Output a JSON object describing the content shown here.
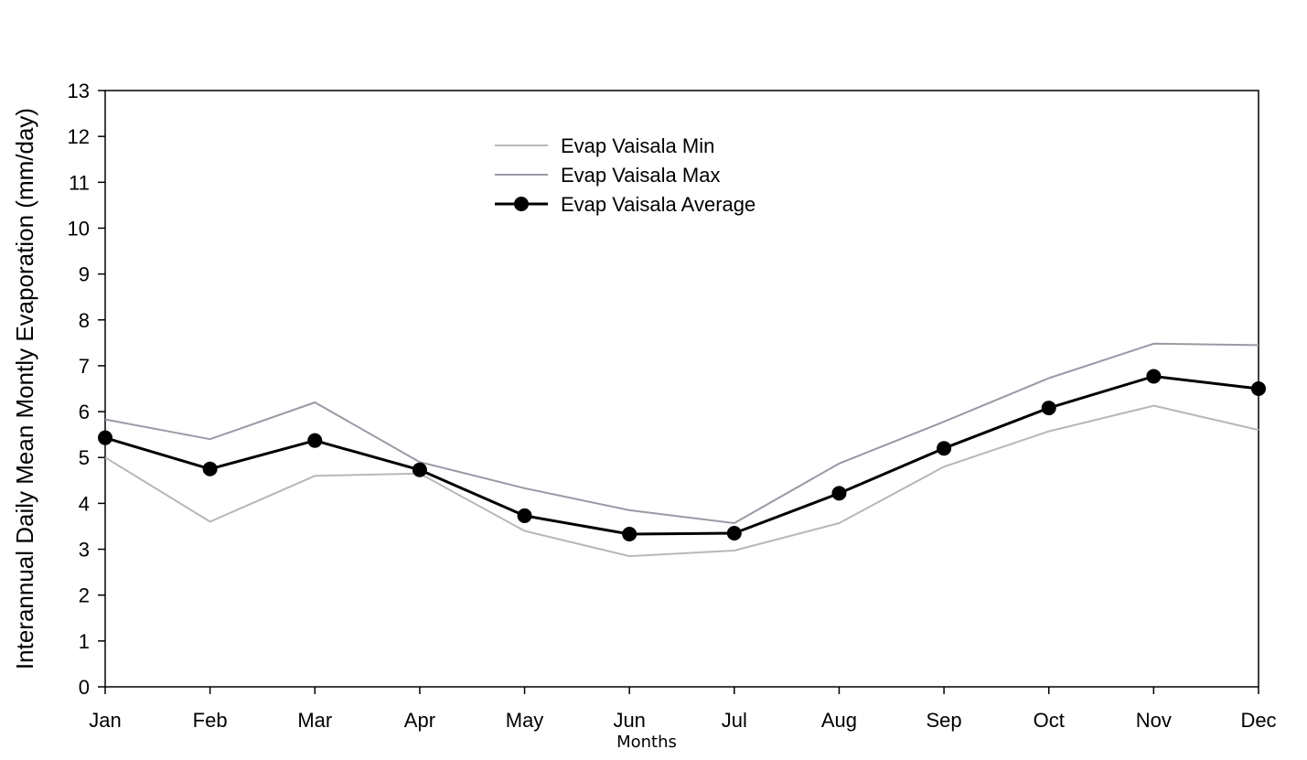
{
  "chart_data": {
    "type": "line",
    "title": "",
    "xlabel": "Months",
    "ylabel": "Interannual Daily Mean Montly Evaporation  (mm/day)",
    "categories": [
      "Jan",
      "Feb",
      "Mar",
      "Apr",
      "May",
      "Jun",
      "Jul",
      "Aug",
      "Sep",
      "Oct",
      "Nov",
      "Dec"
    ],
    "ylim": [
      0,
      13
    ],
    "yticks": [
      "0",
      "1",
      "2",
      "3",
      "4",
      "5",
      "6",
      "7",
      "8",
      "9",
      "10",
      "11",
      "12",
      "13"
    ],
    "grid": false,
    "legend_position": "top-center",
    "series": [
      {
        "name": "Evap Vaisala Min",
        "color": "#b8b8b8",
        "markers": false,
        "values": [
          5.0,
          3.6,
          4.6,
          4.65,
          3.4,
          2.85,
          2.97,
          3.57,
          4.8,
          5.57,
          6.13,
          5.6
        ]
      },
      {
        "name": "Evap Vaisala Max",
        "color": "#9a9aa6",
        "markers": false,
        "values": [
          5.83,
          5.4,
          6.2,
          4.9,
          4.33,
          3.85,
          3.57,
          4.87,
          5.78,
          6.73,
          7.48,
          7.45
        ]
      },
      {
        "name": "Evap Vaisala Average",
        "color": "#000000",
        "markers": true,
        "values": [
          5.43,
          4.75,
          5.37,
          4.73,
          3.73,
          3.33,
          3.35,
          4.22,
          5.2,
          6.08,
          6.77,
          6.5
        ]
      }
    ]
  }
}
